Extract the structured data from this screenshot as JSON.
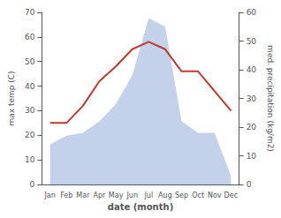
{
  "chart_data": {
    "type": "line",
    "xlabel": "date (month)",
    "ylabel": "max temp (C)",
    "y2label": "med. precipitation (kg/m2)",
    "categories": [
      "Jan",
      "Feb",
      "Mar",
      "Apr",
      "May",
      "Jun",
      "Jul",
      "Aug",
      "Sep",
      "Oct",
      "Nov",
      "Dec"
    ],
    "series": [
      {
        "type": "area",
        "axis": "y2",
        "color": "#b8c9e8",
        "values": [
          14,
          17,
          18,
          22,
          28,
          38,
          58,
          55,
          22,
          18,
          18,
          3
        ]
      },
      {
        "type": "line",
        "color": "#c0392b",
        "values": [
          25,
          25,
          32,
          42,
          48,
          55,
          58,
          55,
          46,
          46,
          38,
          30
        ]
      }
    ],
    "ylim": [
      0,
      70
    ],
    "yticks": [
      0,
      10,
      20,
      30,
      40,
      50,
      60,
      70
    ],
    "y2lim": [
      0,
      60
    ],
    "y2ticks": [
      0,
      10,
      20,
      30,
      40,
      50,
      60
    ],
    "grid": false
  }
}
